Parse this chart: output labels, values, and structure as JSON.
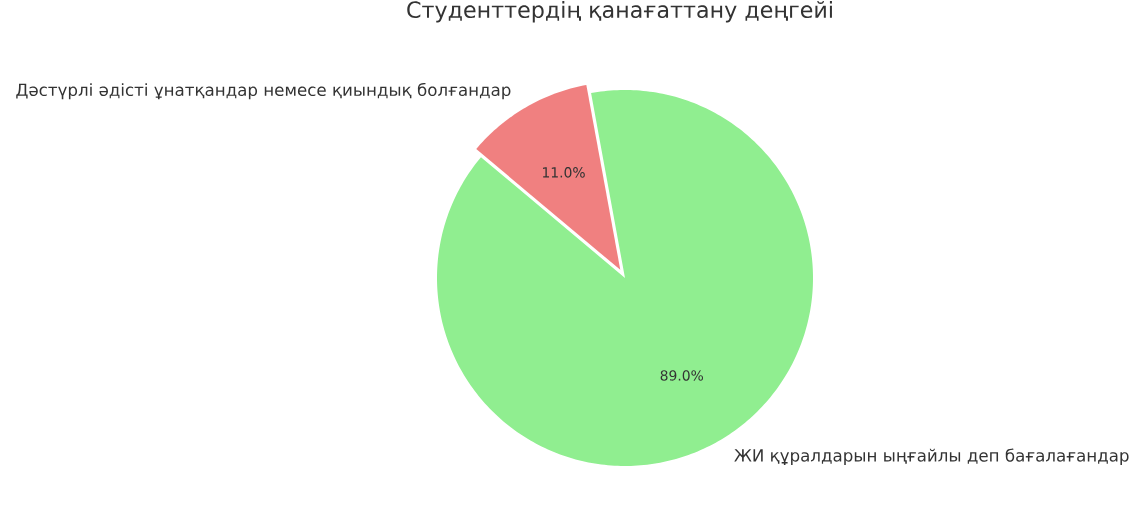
{
  "chart_data": {
    "type": "pie",
    "title": "Студенттердің қанағаттану деңгейі",
    "categories": [
      "ЖИ құралдарын ыңғайлы деп бағалағандар",
      "Дәстүрлі әдісті ұнатқандар немесе қиындық болғандар"
    ],
    "values": [
      89,
      11
    ],
    "colors": [
      "#90ee90",
      "#f08080"
    ],
    "value_labels": [
      "89.0%",
      "11.0%"
    ]
  }
}
